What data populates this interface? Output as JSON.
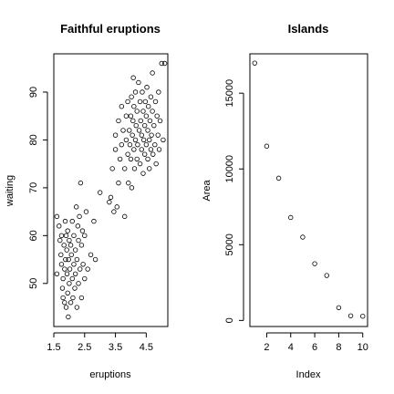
{
  "chart_data": [
    {
      "type": "scatter",
      "title": "Faithful eruptions",
      "xlabel": "eruptions",
      "ylabel": "waiting",
      "xlim": [
        1.5,
        5.2
      ],
      "ylim": [
        41,
        98
      ],
      "xticks": [
        1.5,
        2.5,
        3.5,
        4.5
      ],
      "yticks": [
        50,
        60,
        70,
        80,
        90
      ],
      "xtick_labels": [
        "1.5",
        "2.5",
        "3.5",
        "4.5"
      ],
      "ytick_labels": [
        "50",
        "60",
        "70",
        "80",
        "90"
      ],
      "marker": "open-circle",
      "grid": false,
      "points": [
        [
          1.6,
          52
        ],
        [
          1.6,
          64
        ],
        [
          1.67,
          62
        ],
        [
          1.7,
          59
        ],
        [
          1.73,
          56
        ],
        [
          1.75,
          60
        ],
        [
          1.75,
          54
        ],
        [
          1.78,
          49
        ],
        [
          1.8,
          47
        ],
        [
          1.8,
          51
        ],
        [
          1.83,
          58
        ],
        [
          1.85,
          46
        ],
        [
          1.85,
          53
        ],
        [
          1.87,
          63
        ],
        [
          1.88,
          55
        ],
        [
          1.9,
          60
        ],
        [
          1.9,
          45
        ],
        [
          1.92,
          57
        ],
        [
          1.93,
          52
        ],
        [
          1.95,
          48
        ],
        [
          1.95,
          61
        ],
        [
          1.97,
          43
        ],
        [
          1.98,
          55
        ],
        [
          2.0,
          50
        ],
        [
          2.0,
          59
        ],
        [
          2.02,
          53
        ],
        [
          2.05,
          46
        ],
        [
          2.05,
          58
        ],
        [
          2.07,
          56
        ],
        [
          2.1,
          51
        ],
        [
          2.1,
          63
        ],
        [
          2.12,
          47
        ],
        [
          2.15,
          54
        ],
        [
          2.15,
          60
        ],
        [
          2.18,
          49
        ],
        [
          2.2,
          57
        ],
        [
          2.2,
          52
        ],
        [
          2.23,
          66
        ],
        [
          2.25,
          45
        ],
        [
          2.25,
          55
        ],
        [
          2.28,
          62
        ],
        [
          2.3,
          50
        ],
        [
          2.3,
          59
        ],
        [
          2.33,
          64
        ],
        [
          2.35,
          53
        ],
        [
          2.37,
          71
        ],
        [
          2.4,
          47
        ],
        [
          2.4,
          58
        ],
        [
          2.43,
          61
        ],
        [
          2.45,
          54
        ],
        [
          2.5,
          51
        ],
        [
          2.5,
          60
        ],
        [
          2.55,
          65
        ],
        [
          2.6,
          53
        ],
        [
          2.7,
          56
        ],
        [
          2.8,
          63
        ],
        [
          2.85,
          55
        ],
        [
          3.0,
          69
        ],
        [
          3.3,
          67
        ],
        [
          3.35,
          68
        ],
        [
          3.4,
          74
        ],
        [
          3.45,
          65
        ],
        [
          3.5,
          78
        ],
        [
          3.5,
          81
        ],
        [
          3.55,
          66
        ],
        [
          3.6,
          84
        ],
        [
          3.6,
          71
        ],
        [
          3.65,
          76
        ],
        [
          3.7,
          79
        ],
        [
          3.7,
          87
        ],
        [
          3.75,
          82
        ],
        [
          3.8,
          74
        ],
        [
          3.8,
          64
        ],
        [
          3.85,
          85
        ],
        [
          3.85,
          80
        ],
        [
          3.9,
          77
        ],
        [
          3.9,
          88
        ],
        [
          3.92,
          71
        ],
        [
          3.95,
          82
        ],
        [
          3.97,
          79
        ],
        [
          4.0,
          85
        ],
        [
          4.0,
          76
        ],
        [
          4.02,
          89
        ],
        [
          4.03,
          70
        ],
        [
          4.05,
          81
        ],
        [
          4.07,
          84
        ],
        [
          4.08,
          93
        ],
        [
          4.1,
          78
        ],
        [
          4.1,
          87
        ],
        [
          4.12,
          74
        ],
        [
          4.15,
          80
        ],
        [
          4.15,
          90
        ],
        [
          4.17,
          83
        ],
        [
          4.2,
          76
        ],
        [
          4.2,
          86
        ],
        [
          4.22,
          79
        ],
        [
          4.25,
          92
        ],
        [
          4.27,
          82
        ],
        [
          4.3,
          88
        ],
        [
          4.3,
          75
        ],
        [
          4.32,
          84
        ],
        [
          4.35,
          78
        ],
        [
          4.35,
          81
        ],
        [
          4.37,
          90
        ],
        [
          4.4,
          86
        ],
        [
          4.4,
          73
        ],
        [
          4.42,
          80
        ],
        [
          4.45,
          83
        ],
        [
          4.45,
          77
        ],
        [
          4.47,
          88
        ],
        [
          4.5,
          79
        ],
        [
          4.5,
          85
        ],
        [
          4.52,
          91
        ],
        [
          4.55,
          76
        ],
        [
          4.55,
          82
        ],
        [
          4.57,
          87
        ],
        [
          4.6,
          80
        ],
        [
          4.6,
          74
        ],
        [
          4.62,
          84
        ],
        [
          4.65,
          78
        ],
        [
          4.65,
          89
        ],
        [
          4.67,
          81
        ],
        [
          4.7,
          86
        ],
        [
          4.7,
          94
        ],
        [
          4.72,
          77
        ],
        [
          4.75,
          83
        ],
        [
          4.78,
          79
        ],
        [
          4.8,
          88
        ],
        [
          4.82,
          75
        ],
        [
          4.85,
          85
        ],
        [
          4.88,
          81
        ],
        [
          4.9,
          90
        ],
        [
          4.92,
          78
        ],
        [
          4.95,
          84
        ],
        [
          5.0,
          96
        ],
        [
          5.05,
          80
        ],
        [
          5.1,
          96
        ]
      ]
    },
    {
      "type": "scatter",
      "title": "Islands",
      "xlabel": "Index",
      "ylabel": "Area",
      "xlim": [
        0.6,
        10.4
      ],
      "ylim": [
        -400,
        17600
      ],
      "xticks": [
        2,
        4,
        6,
        8,
        10
      ],
      "yticks": [
        0,
        5000,
        10000,
        15000
      ],
      "xtick_labels": [
        "2",
        "4",
        "6",
        "8",
        "10"
      ],
      "ytick_labels": [
        "0",
        "5000",
        "10000",
        "15000"
      ],
      "marker": "open-circle",
      "grid": false,
      "points": [
        [
          1,
          16988
        ],
        [
          2,
          11506
        ],
        [
          3,
          9390
        ],
        [
          4,
          6795
        ],
        [
          5,
          5500
        ],
        [
          6,
          3745
        ],
        [
          7,
          2968
        ],
        [
          8,
          840
        ],
        [
          9,
          306
        ],
        [
          10,
          280
        ]
      ]
    }
  ]
}
